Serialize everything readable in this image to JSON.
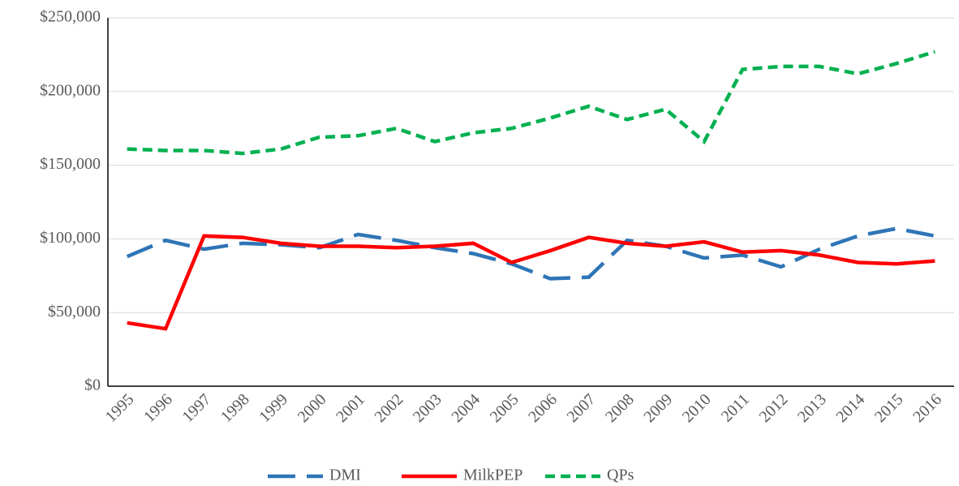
{
  "chart_data": {
    "type": "line",
    "categories": [
      "1995",
      "1996",
      "1997",
      "1998",
      "1999",
      "2000",
      "2001",
      "2002",
      "2003",
      "2004",
      "2005",
      "2006",
      "2007",
      "2008",
      "2009",
      "2010",
      "2011",
      "2012",
      "2013",
      "2014",
      "2015",
      "2016"
    ],
    "series": [
      {
        "name": "DMI",
        "color": "#2e75b6",
        "dash": "long",
        "values": [
          88000,
          99000,
          93000,
          97000,
          96000,
          94000,
          103000,
          99000,
          94000,
          90000,
          83000,
          73000,
          74000,
          99000,
          95000,
          87000,
          89000,
          81000,
          93000,
          102000,
          107000,
          102000
        ]
      },
      {
        "name": "MilkPEP",
        "color": "#ff0000",
        "dash": "solid",
        "values": [
          43000,
          39000,
          102000,
          101000,
          97000,
          95000,
          95000,
          94000,
          95000,
          97000,
          84000,
          92000,
          101000,
          97000,
          95000,
          98000,
          91000,
          92000,
          89000,
          84000,
          83000,
          85000
        ]
      },
      {
        "name": "QPs",
        "color": "#00b050",
        "dash": "short",
        "values": [
          161000,
          160000,
          160000,
          158000,
          161000,
          169000,
          170000,
          175000,
          166000,
          172000,
          175000,
          182000,
          190000,
          181000,
          188000,
          166000,
          215000,
          217000,
          217000,
          212000,
          219000,
          227000
        ]
      }
    ],
    "ylim": [
      0,
      250000
    ],
    "yticks": [
      {
        "value": 0,
        "label": "$0"
      },
      {
        "value": 50000,
        "label": "$50,000"
      },
      {
        "value": 100000,
        "label": "$100,000"
      },
      {
        "value": 150000,
        "label": "$150,000"
      },
      {
        "value": 200000,
        "label": "$200,000"
      },
      {
        "value": 250000,
        "label": "$250,000"
      }
    ],
    "grid": true,
    "legend": "bottom"
  }
}
